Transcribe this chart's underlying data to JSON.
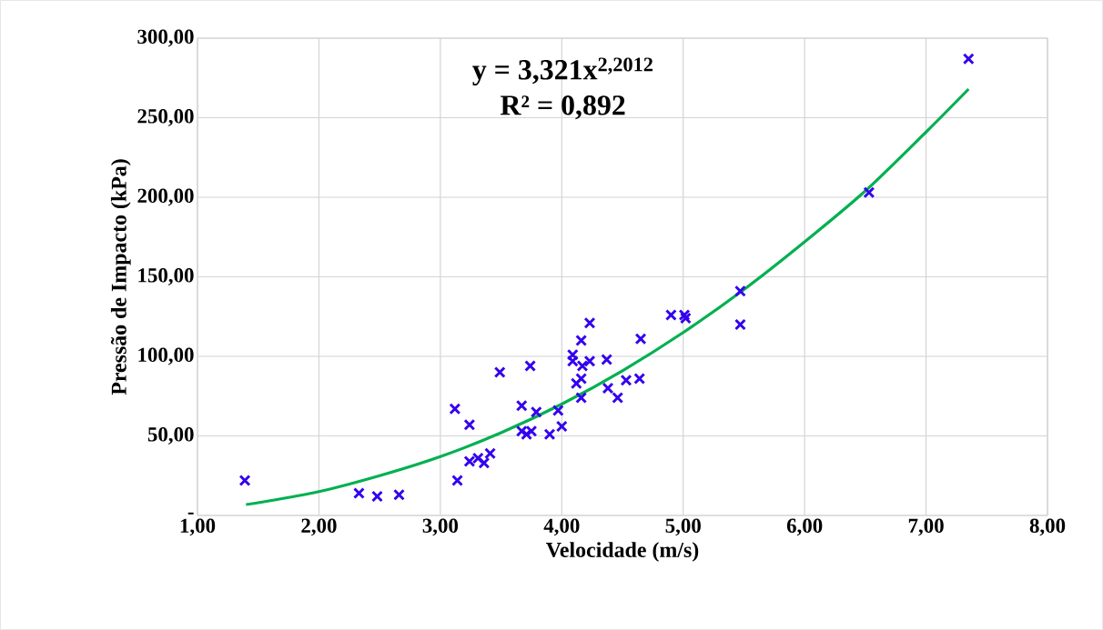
{
  "chart_data": {
    "type": "scatter",
    "xlabel": "Velocidade (m/s)",
    "ylabel": "Pressão de Impacto (kPa)",
    "xlim": [
      1,
      8
    ],
    "ylim": [
      0,
      300
    ],
    "xticks": [
      {
        "value": 1,
        "label": "1,00"
      },
      {
        "value": 2,
        "label": "2,00"
      },
      {
        "value": 3,
        "label": "3,00"
      },
      {
        "value": 4,
        "label": "4,00"
      },
      {
        "value": 5,
        "label": "5,00"
      },
      {
        "value": 6,
        "label": "6,00"
      },
      {
        "value": 7,
        "label": "7,00"
      },
      {
        "value": 8,
        "label": "8,00"
      }
    ],
    "yticks": [
      {
        "value": 0,
        "label": "-"
      },
      {
        "value": 50,
        "label": "50,00"
      },
      {
        "value": 100,
        "label": "100,00"
      },
      {
        "value": 150,
        "label": "150,00"
      },
      {
        "value": 200,
        "label": "200,00"
      },
      {
        "value": 250,
        "label": "250,00"
      },
      {
        "value": 300,
        "label": "300,00"
      }
    ],
    "grid": true,
    "marker": "cross",
    "annotations": [
      "y = 3,321x$^{2,2012}$",
      "R² = 0,892"
    ],
    "series": [
      {
        "color": "#3300ee",
        "x": [
          1.39,
          2.33,
          2.48,
          2.66,
          3.12,
          3.14,
          3.24,
          3.24,
          3.31,
          3.36,
          3.41,
          3.49,
          3.67,
          3.67,
          3.71,
          3.74,
          3.75,
          3.79,
          3.9,
          3.97,
          4.0,
          4.09,
          4.09,
          4.12,
          4.16,
          4.16,
          4.16,
          4.17,
          4.23,
          4.23,
          4.37,
          4.38,
          4.46,
          4.53,
          4.64,
          4.65,
          4.9,
          5.01,
          5.02,
          5.47,
          5.47,
          6.53,
          7.35
        ],
        "values": [
          22,
          14,
          12,
          13,
          67,
          22,
          57,
          34,
          36,
          33,
          39,
          90,
          69,
          53,
          51,
          94,
          53,
          65,
          51,
          66,
          56,
          101,
          97,
          83,
          74,
          110,
          86,
          94,
          121,
          97,
          98,
          80,
          74,
          85,
          86,
          111,
          126,
          126,
          124,
          141,
          120,
          203,
          287
        ]
      },
      {
        "type": "line",
        "color": "#00b050",
        "marker": "none",
        "x": [
          1.4,
          1.5,
          2,
          2.5,
          3,
          3.5,
          4,
          4.5,
          5,
          5.5,
          6,
          6.5,
          7,
          7.35
        ],
        "values": [
          7,
          8,
          15,
          25,
          37,
          52,
          70,
          91,
          115,
          142,
          172,
          204,
          241,
          268
        ]
      }
    ]
  }
}
